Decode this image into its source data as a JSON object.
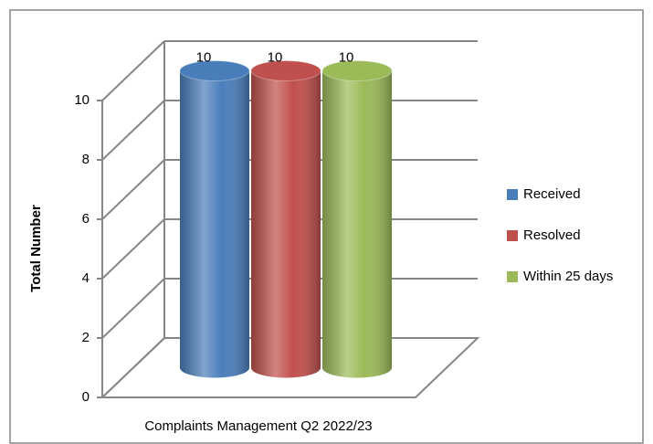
{
  "chart_data": {
    "type": "bar",
    "y_label": "Total Number",
    "categories": [
      "Complaints Management Q2 2022/23"
    ],
    "series": [
      {
        "name": "Received",
        "color": "#4a7ebb",
        "values": [
          10
        ]
      },
      {
        "name": "Resolved",
        "color": "#c0504d",
        "values": [
          10
        ]
      },
      {
        "name": "Within 25 days",
        "color": "#9bbb59",
        "values": [
          10
        ]
      }
    ],
    "ylim": [
      0,
      10
    ],
    "yticks": [
      0,
      2,
      4,
      6,
      8,
      10
    ],
    "grid": true,
    "legend": "right"
  }
}
